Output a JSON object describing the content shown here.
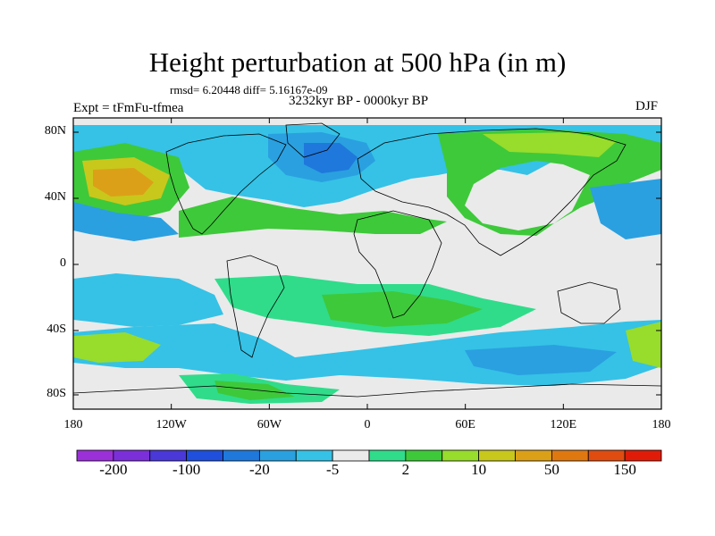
{
  "title": "Height perturbation at 500 hPa (in m)",
  "stats": "rmsd= 6.20448 diff= 5.16167e-09",
  "period": "3232kyr BP - 0000kyr BP",
  "experiment": "Expt = tFmFu-tfmea",
  "season": "DJF",
  "axes": {
    "x_ticks": [
      "180",
      "120W",
      "60W",
      "0",
      "60E",
      "120E",
      "180"
    ],
    "y_ticks": [
      "80N",
      "40N",
      "0",
      "40S",
      "80S"
    ]
  },
  "colorbar": {
    "colors": [
      "#9b30d8",
      "#7b2fd9",
      "#4a38d9",
      "#1f4fdc",
      "#1f78dc",
      "#2aa0e0",
      "#35c2e6",
      "#eaeaea",
      "#30dc8a",
      "#3ec93a",
      "#98dc2c",
      "#c8c81c",
      "#dca018",
      "#e07810",
      "#e04c10",
      "#e01c08"
    ],
    "labels": [
      "-200",
      "-100",
      "-20",
      "-5",
      "2",
      "10",
      "50",
      "150"
    ]
  },
  "colors": {
    "background_field": "#eaeaea",
    "coastline": "#000000"
  }
}
